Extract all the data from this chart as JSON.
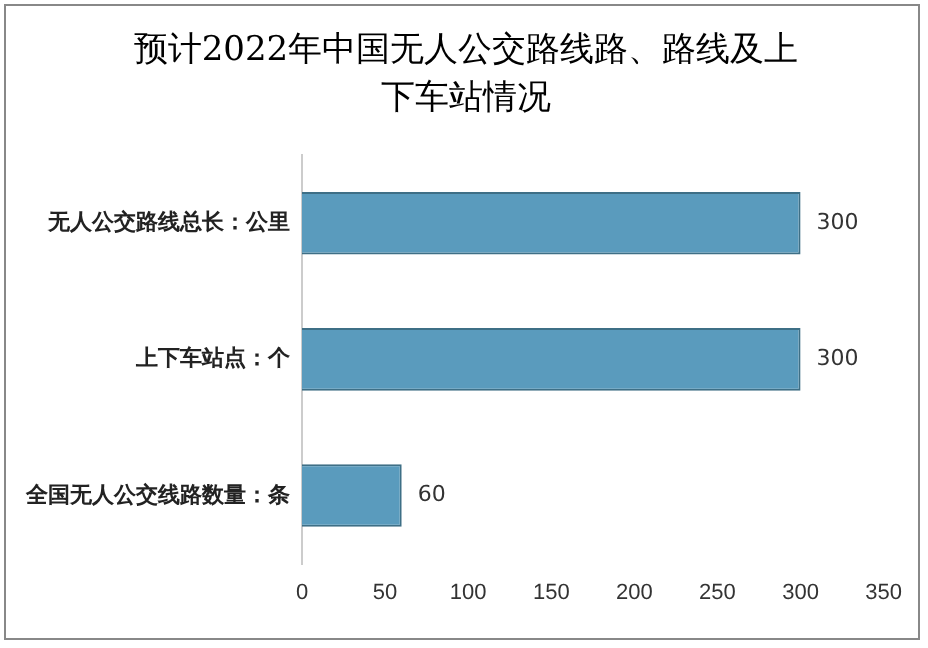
{
  "chart_data": {
    "type": "bar",
    "orientation": "horizontal",
    "title": "预计2022年中国无人公交路线路、路线及上下车站情况",
    "categories": [
      "无人公交路线总长：公里",
      "上下车站点：个",
      "全国无人公交线路数量：条"
    ],
    "values": [
      300,
      300,
      60
    ],
    "color": "#5a9bbd",
    "xlim": [
      0,
      350
    ],
    "xticks": [
      0,
      50,
      100,
      150,
      200,
      250,
      300,
      350
    ],
    "data_labels": true,
    "grid": false,
    "legend": false
  }
}
